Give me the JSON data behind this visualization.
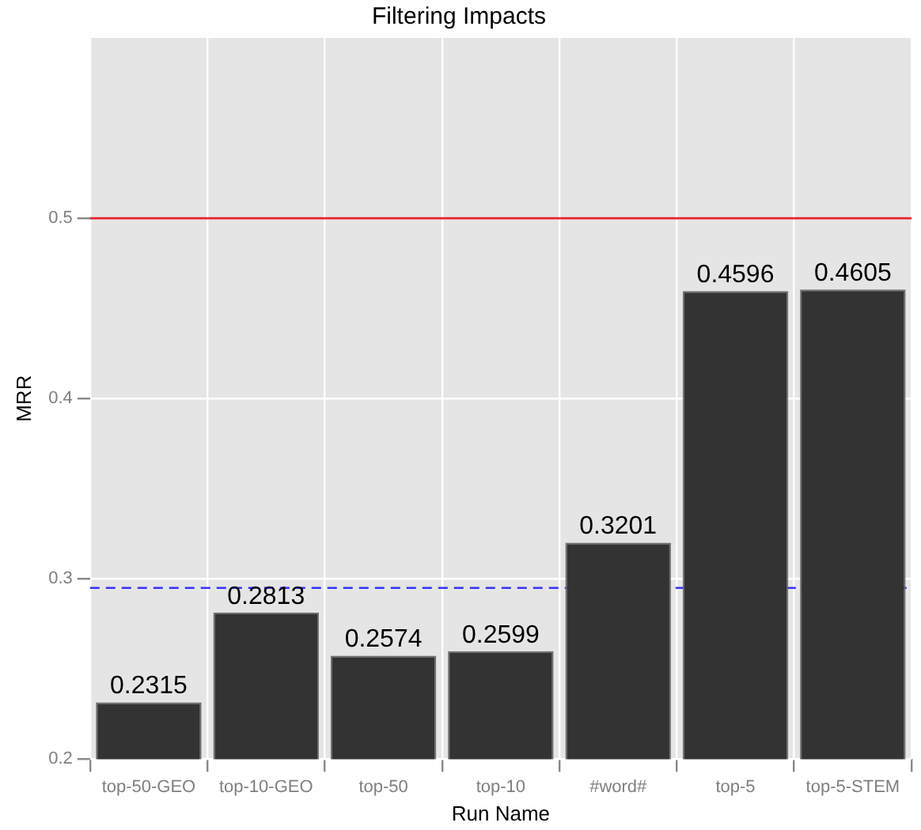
{
  "chart_data": {
    "type": "bar",
    "title": "Filtering Impacts",
    "xlabel": "Run Name",
    "ylabel": "MRR",
    "categories": [
      "top-50-GEO",
      "top-10-GEO",
      "top-50",
      "top-10",
      "#word#",
      "top-5",
      "top-5-STEM"
    ],
    "values": [
      0.2315,
      0.2813,
      0.2574,
      0.2599,
      0.3201,
      0.4596,
      0.4605
    ],
    "color": "#333333",
    "ylim": [
      0.2,
      0.6
    ],
    "yticks": [
      0.2,
      0.3,
      0.4,
      0.5
    ],
    "grid": true,
    "data_labels": true,
    "legend": false,
    "ref_lines": [
      {
        "axis": "y",
        "value": 0.5,
        "color": "#e8202a",
        "line_style": "solid"
      },
      {
        "axis": "y",
        "value": 0.295,
        "color": "#3333ff",
        "line_style": "dashed"
      }
    ]
  }
}
